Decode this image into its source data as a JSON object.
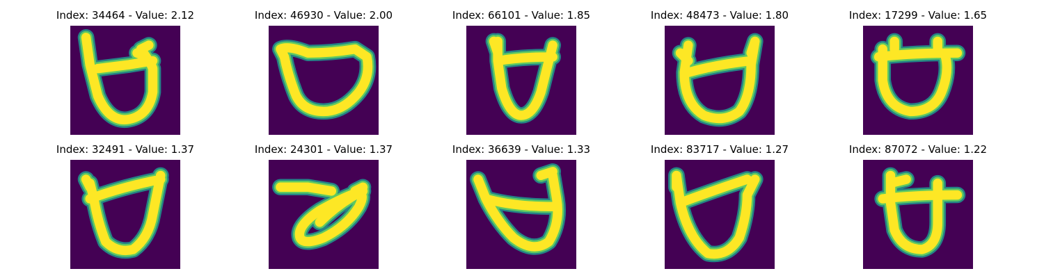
{
  "figure": {
    "colors": {
      "background": "#440154",
      "stroke_edge": "#21918c",
      "stroke_mid": "#5ec962",
      "stroke_core": "#fde725"
    },
    "panels": [
      {
        "title": "Index: 34464 - Value: 2.12",
        "glyph": "open-cup-with-hook"
      },
      {
        "title": "Index: 46930 - Value: 2.00",
        "glyph": "wide-bowl"
      },
      {
        "title": "Index: 66101 - Value: 1.85",
        "glyph": "narrow-cup-with-horns"
      },
      {
        "title": "Index: 48473 - Value: 1.80",
        "glyph": "bold-cup-with-horns"
      },
      {
        "title": "Index: 17299 - Value: 1.65",
        "glyph": "round-cup-with-bar"
      },
      {
        "title": "Index: 32491 - Value: 1.37",
        "glyph": "tilted-cup"
      },
      {
        "title": "Index: 24301 - Value: 1.37",
        "glyph": "z-loop"
      },
      {
        "title": "Index: 36639 - Value: 1.33",
        "glyph": "slanted-cup-with-bar"
      },
      {
        "title": "Index: 83717 - Value: 1.27",
        "glyph": "cup-with-diagonal-bar"
      },
      {
        "title": "Index: 87072 - Value: 1.22",
        "glyph": "square-cup-with-crossbar"
      }
    ]
  }
}
